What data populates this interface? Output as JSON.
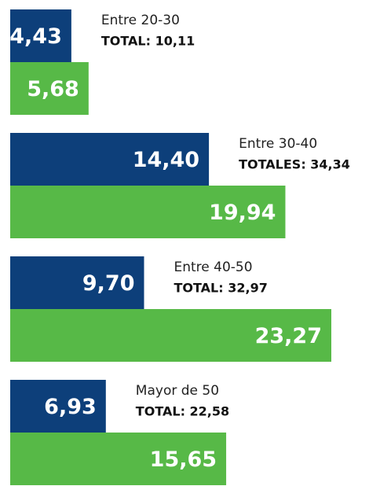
{
  "chart_data": {
    "type": "bar",
    "orientation": "horizontal",
    "categories": [
      "Entre 20-30",
      "Entre 30-40",
      "Entre 40-50",
      "Mayor de 50"
    ],
    "totals": [
      "TOTAL: 10,11",
      "TOTALES: 34,34",
      "TOTAL: 32,97",
      "TOTAL: 22,58"
    ],
    "series": [
      {
        "color": "#0d3f7a",
        "values": [
          4.43,
          14.4,
          9.7,
          6.93
        ],
        "value_labels": [
          "4,43",
          "14,40",
          "9,70",
          "6,93"
        ]
      },
      {
        "color": "#57b947",
        "values": [
          5.68,
          19.94,
          23.27,
          15.65
        ],
        "value_labels": [
          "5,68",
          "19,94",
          "23,27",
          "15,65"
        ]
      }
    ]
  }
}
